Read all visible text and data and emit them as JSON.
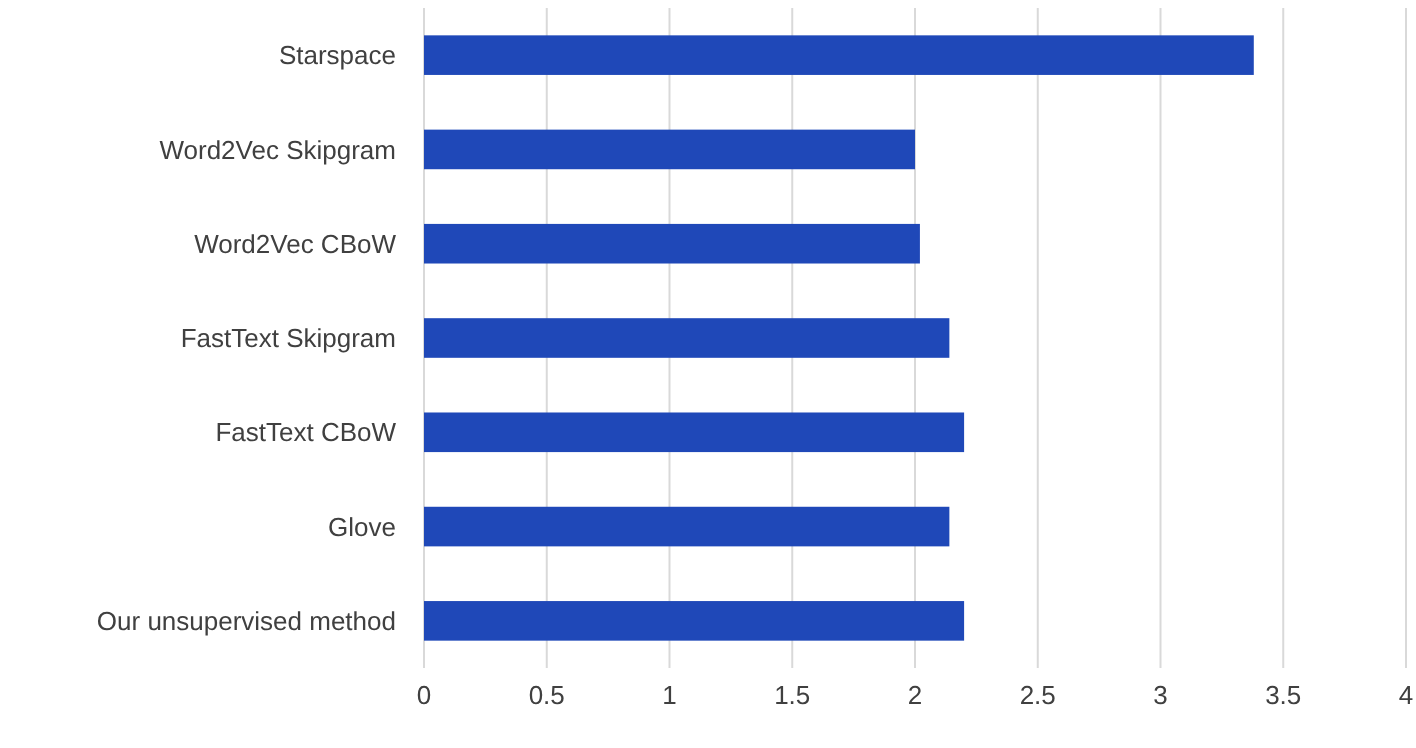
{
  "chart_data": {
    "type": "bar",
    "orientation": "horizontal",
    "categories": [
      "Starspace",
      "Word2Vec Skipgram",
      "Word2Vec CBoW",
      "FastText Skipgram",
      "FastText CBoW",
      "Glove",
      "Our unsupervised method"
    ],
    "values": [
      3.38,
      2.0,
      2.02,
      2.14,
      2.2,
      2.14,
      2.2
    ],
    "color": "#1f48b8",
    "xlim": [
      0,
      4
    ],
    "xticks": [
      0,
      0.5,
      1,
      1.5,
      2,
      2.5,
      3,
      3.5,
      4
    ],
    "grid": "x"
  }
}
